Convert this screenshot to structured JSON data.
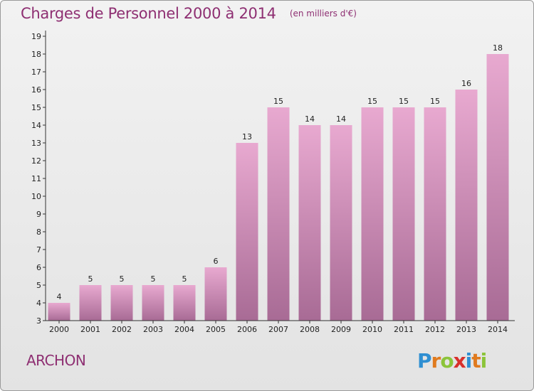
{
  "header": {
    "title": "Charges de Personnel 2000 à 2014",
    "subtitle": "(en milliers d'€)"
  },
  "footer": {
    "commune": "ARCHON",
    "logo_letters": [
      "P",
      "r",
      "o",
      "x",
      "i",
      "t",
      "i"
    ],
    "logo_colors": [
      "#2f8fd2",
      "#e07b1f",
      "#8cc43a",
      "#d8302b",
      "#2f8fd2",
      "#e07b1f",
      "#8cc43a"
    ]
  },
  "colors": {
    "title": "#8e2f72",
    "bar_top": "#e8a9d0",
    "bar_bottom": "#a86b95",
    "axis": "#333333"
  },
  "chart_data": {
    "type": "bar",
    "title": "Charges de Personnel 2000 à 2014",
    "subtitle": "(en milliers d'€)",
    "categories": [
      "2000",
      "2001",
      "2002",
      "2003",
      "2004",
      "2005",
      "2006",
      "2007",
      "2008",
      "2009",
      "2010",
      "2011",
      "2012",
      "2013",
      "2014"
    ],
    "values": [
      4,
      5,
      5,
      5,
      5,
      6,
      13,
      15,
      14,
      14,
      15,
      15,
      15,
      16,
      18
    ],
    "value_labels": [
      "4",
      "5",
      "5",
      "5",
      "5",
      "6",
      "13",
      "15",
      "14",
      "14",
      "15",
      "15",
      "15",
      "16",
      "18"
    ],
    "ylim": [
      3,
      19
    ],
    "yticks": [
      "3",
      "4",
      "5",
      "6",
      "7",
      "8",
      "9",
      "10",
      "11",
      "12",
      "13",
      "14",
      "15",
      "16",
      "17",
      "18",
      "19"
    ],
    "grid": false,
    "legend": "none"
  }
}
